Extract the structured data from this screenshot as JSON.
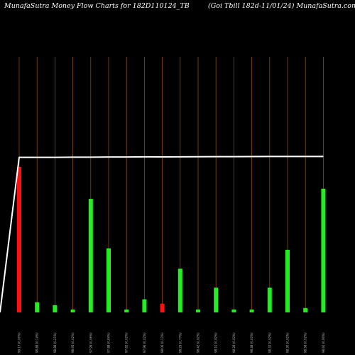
{
  "header": {
    "title_left": "MunafaSutra  Money Flow  Charts for 182D110124_TB",
    "title_right": "(Goi   Tbill 182d-11/01/24) MunafaSutra.com"
  },
  "colors": {
    "background": "#000000",
    "up_bar": "#22ee22",
    "down_bar": "#ff1111",
    "gridline": "#8a4a12",
    "price_line": "#ffffff"
  },
  "chart_data": {
    "type": "bar",
    "title": "MunafaSutra  Money Flow  Charts for 182D110124_TB",
    "subtitle": "(Goi   Tbill 182d-11/01/24) MunafaSutra.com",
    "categories": [
      "99.17 (0.00%)",
      "98.88 (0.14%)",
      "98.88 (0.21%)",
      "98.95 (0.02%)",
      "97.99 (0.06%)",
      "97.88 (0.84%)",
      "97.82 (0.02%)",
      "97.96 (0.02%)",
      "98.06 (0.12%)",
      "98.29 (0.77%)",
      "98.42 (0.02%)",
      "98.10 (0.02%)",
      "98.28 (0.02%)",
      "98.48 (0.02%)",
      "98.32 (0.02%)",
      "98.30 (0.02%)",
      "98.58 (0.02%)",
      "98.60 (0.00%)"
    ],
    "series": [
      {
        "values": [
          100,
          7,
          5,
          2,
          78,
          44,
          2,
          9,
          6,
          30,
          2,
          17,
          2,
          2,
          17,
          43,
          3,
          85
        ],
        "directions": [
          "down",
          "up",
          "up",
          "up",
          "up",
          "up",
          "up",
          "up",
          "down",
          "up",
          "up",
          "up",
          "up",
          "up",
          "up",
          "up",
          "up",
          "up"
        ]
      },
      {
        "type": "line",
        "values": [
          0,
          98.5,
          98.5,
          98.5,
          98.6,
          98.6,
          98.7,
          98.7,
          98.8,
          98.75,
          98.8,
          98.9,
          98.95,
          98.95,
          99.0,
          99.05,
          99.05,
          99.05
        ]
      }
    ],
    "ylim": [
      0,
      100
    ],
    "price_ylim": [
      0,
      115
    ],
    "grid": true,
    "legend": "none"
  }
}
